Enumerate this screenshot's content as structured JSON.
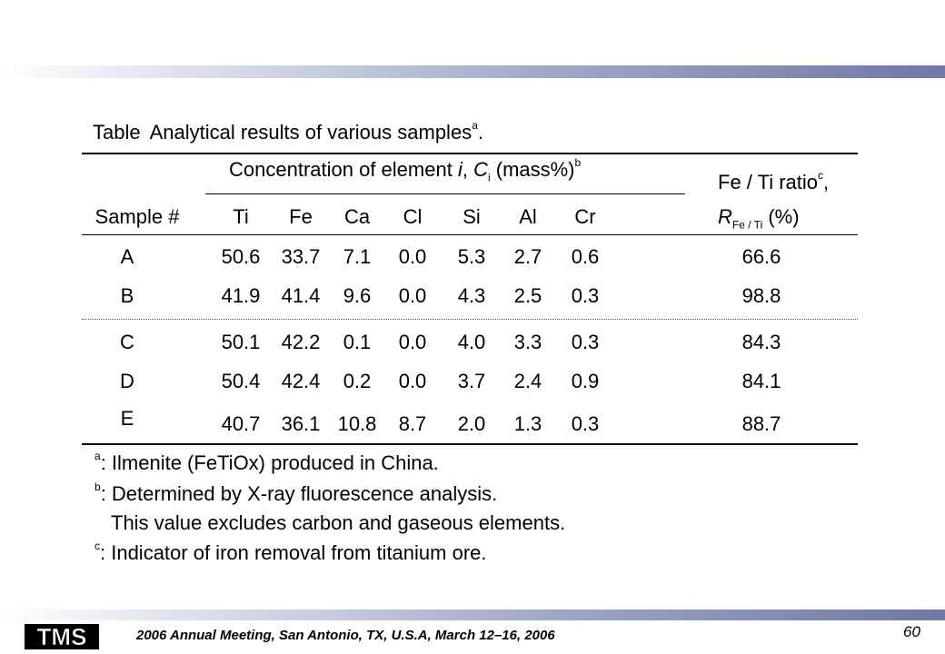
{
  "title": {
    "prefix": "Table",
    "text": "Analytical results of various samples",
    "sup": "a",
    "suffix": "."
  },
  "header": {
    "concentration": {
      "pre": "Concentration of element ",
      "i": "i",
      "comma": ", ",
      "C": "C",
      "sub": "i",
      "post": " (mass%)",
      "sup": "b"
    },
    "sample_col": "Sample #",
    "elements": [
      "Ti",
      "Fe",
      "Ca",
      "Cl",
      "Si",
      "Al",
      "Cr"
    ],
    "ratio_line1": "Fe / Ti ratio",
    "ratio_line1_sup": "c",
    "ratio_line1_post": ",",
    "ratio_R": "R",
    "ratio_sub": "Fe / Ti",
    "ratio_unit": " (%)"
  },
  "rows": [
    {
      "sample": "A",
      "values": [
        "50.6",
        "33.7",
        "7.1",
        "0.0",
        "5.3",
        "2.7",
        "0.6"
      ],
      "ratio": "66.6"
    },
    {
      "sample": "B",
      "values": [
        "41.9",
        "41.4",
        "9.6",
        "0.0",
        "4.3",
        "2.5",
        "0.3"
      ],
      "ratio": "98.8"
    },
    {
      "sample": "C",
      "values": [
        "50.1",
        "42.2",
        "0.1",
        "0.0",
        "4.0",
        "3.3",
        "0.3"
      ],
      "ratio": "84.3"
    },
    {
      "sample": "D",
      "values": [
        "50.4",
        "42.4",
        "0.2",
        "0.0",
        "3.7",
        "2.4",
        "0.9"
      ],
      "ratio": "84.1"
    },
    {
      "sample": "E",
      "values": [
        "40.7",
        "36.1",
        "10.8",
        "8.7",
        "2.0",
        "1.3",
        "0.3"
      ],
      "ratio": "88.7"
    }
  ],
  "footnotes": [
    {
      "mark": "a",
      "text": ": Ilmenite (FeTiOx) produced in China."
    },
    {
      "mark": "b",
      "text": ": Determined by X-ray fluorescence analysis."
    },
    {
      "mark": "",
      "text": "This value excludes carbon and gaseous elements."
    },
    {
      "mark": "c",
      "text": ": Indicator of iron removal from titanium ore."
    }
  ],
  "footer": {
    "logo_text": "TMS",
    "meeting": "2006 Annual Meeting, San Antonio, TX, U.S.A, March 12–16, 2006",
    "page": "60"
  },
  "colors": {
    "band": "#6f78a6",
    "logo": "#000000"
  }
}
